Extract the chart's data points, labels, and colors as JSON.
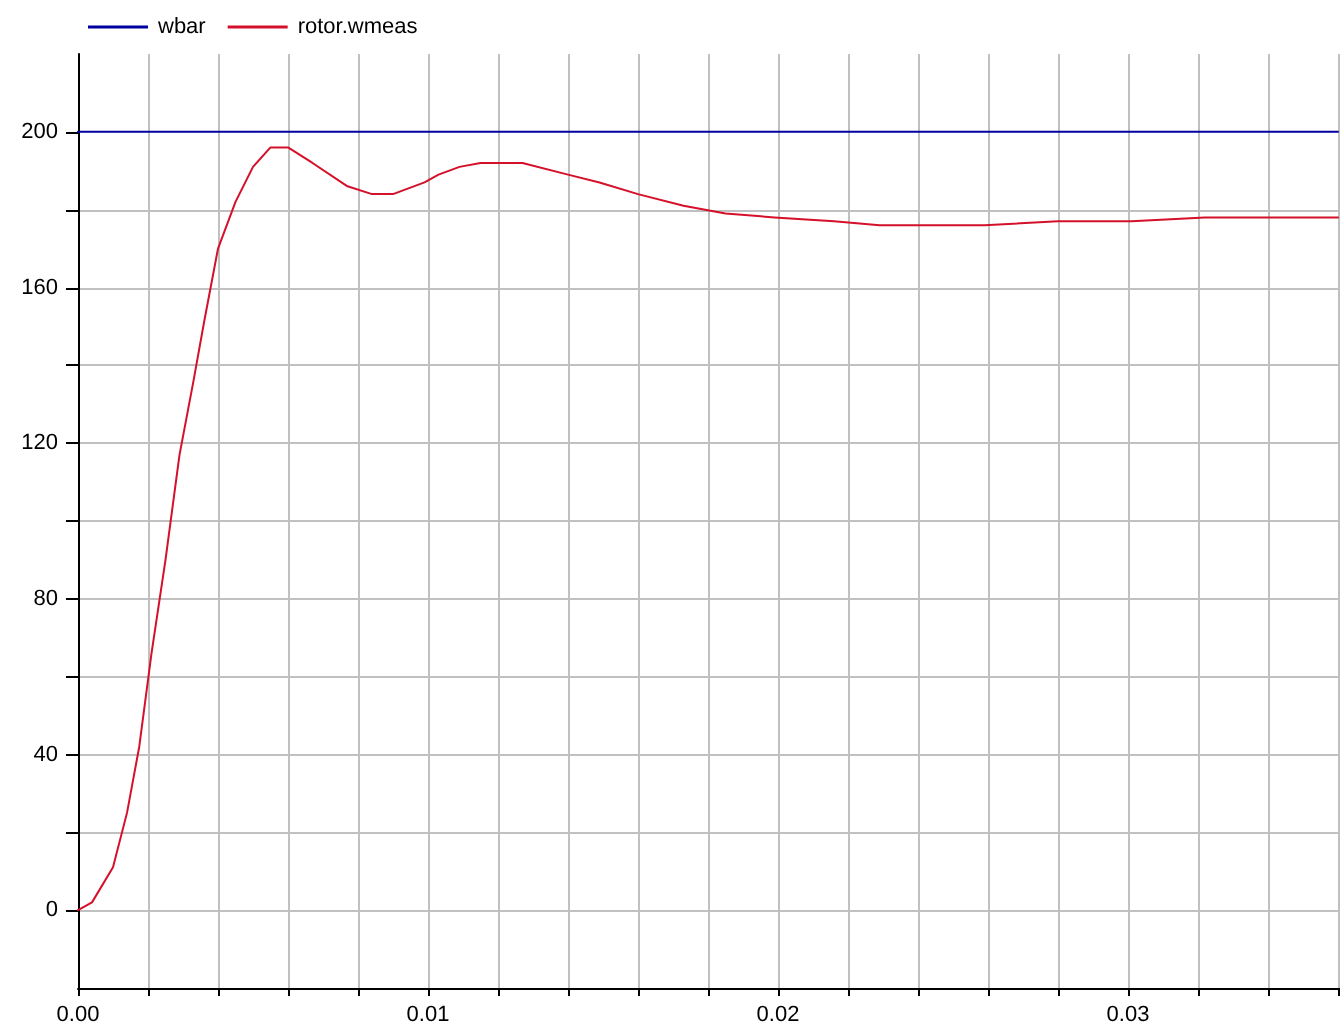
{
  "chart_data": {
    "type": "line",
    "series": [
      {
        "name": "wbar",
        "color": "#0000a0",
        "x": [
          0,
          0.036
        ],
        "values": [
          200,
          200
        ]
      },
      {
        "name": "rotor.wmeas",
        "color": "#d4102a",
        "x": [
          0,
          0.0004,
          0.001,
          0.0014,
          0.00175,
          0.0021,
          0.0025,
          0.0029,
          0.0033,
          0.0036,
          0.004,
          0.0045,
          0.005,
          0.0055,
          0.006,
          0.0067,
          0.0077,
          0.0084,
          0.009,
          0.0099,
          0.0103,
          0.0109,
          0.0115,
          0.0127,
          0.014,
          0.0149,
          0.016,
          0.0173,
          0.0185,
          0.0199,
          0.0216,
          0.0229,
          0.0239,
          0.0259,
          0.028,
          0.0301,
          0.0322,
          0.0355,
          0.036
        ],
        "values": [
          0,
          2,
          11,
          25,
          42,
          66,
          90,
          117,
          136,
          151,
          170,
          182,
          191,
          196,
          196,
          192,
          186,
          184,
          184,
          187,
          189,
          191,
          192,
          192,
          189,
          187,
          184,
          181,
          179,
          178,
          177,
          176,
          176,
          176,
          177,
          177,
          178,
          178,
          178
        ]
      }
    ],
    "xlim": [
      0,
      0.036
    ],
    "xticks": [
      {
        "value": 0,
        "label": "0.00"
      },
      {
        "value": 0.002,
        "label": null
      },
      {
        "value": 0.004,
        "label": null
      },
      {
        "value": 0.006,
        "label": null
      },
      {
        "value": 0.008,
        "label": null
      },
      0.01,
      {
        "value": 0.012,
        "label": null
      },
      {
        "value": 0.014,
        "label": null
      },
      {
        "value": 0.016,
        "label": null
      },
      {
        "value": 0.018,
        "label": null
      },
      0.02,
      {
        "value": 0.022,
        "label": null
      },
      {
        "value": 0.024,
        "label": null
      },
      {
        "value": 0.026,
        "label": null
      },
      {
        "value": 0.028,
        "label": null
      },
      0.03,
      {
        "value": 0.032,
        "label": null
      },
      {
        "value": 0.034,
        "label": null
      },
      {
        "value": 0.036,
        "label": null
      }
    ],
    "ylim": [
      -20,
      220
    ],
    "yticks": [
      0,
      {
        "value": 20,
        "label": null
      },
      40,
      {
        "value": 60,
        "label": null
      },
      80,
      {
        "value": 100,
        "label": null
      },
      120,
      {
        "value": 140,
        "label": null
      },
      160,
      {
        "value": 180,
        "label": null
      },
      200
    ],
    "grid": true,
    "legend": "top left",
    "marker": "none"
  }
}
